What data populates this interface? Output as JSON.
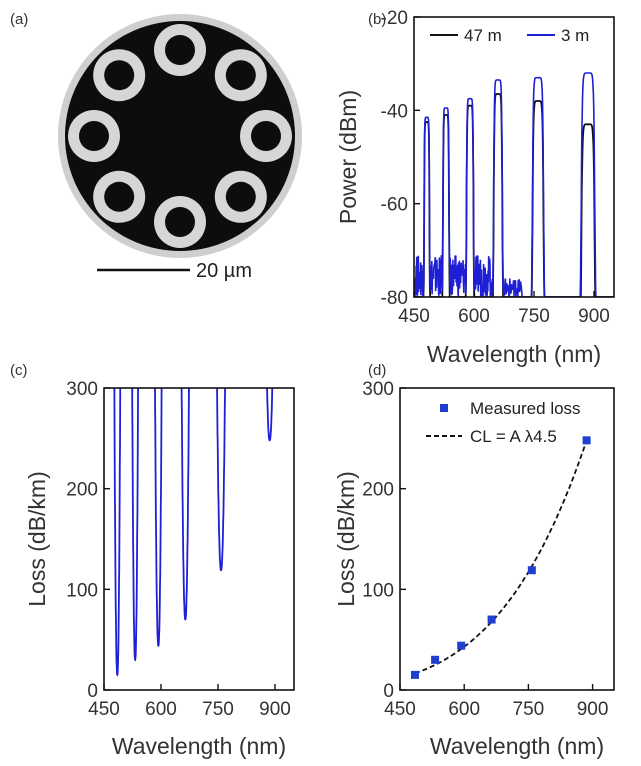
{
  "panel_labels": [
    "(a)",
    "(b)",
    "(c)",
    "(d)"
  ],
  "scalebar_text": "20 µm",
  "colors": {
    "black_series": "#111111",
    "blue_series": "#1f1fd6",
    "marker": "#1f3fcf",
    "fiber_core": "#0d0d0d",
    "fiber_cladding": "#cfcfcf"
  },
  "chart_data": [
    {
      "panel": "(b)",
      "type": "line",
      "xlabel": "Wavelength (nm)",
      "ylabel": "Power (dBm)",
      "xlim": [
        450,
        950
      ],
      "ylim": [
        -80,
        -20
      ],
      "xticks": [
        450,
        600,
        750,
        900
      ],
      "yticks": [
        -80,
        -60,
        -40,
        -20
      ],
      "legend_placement": "top",
      "series": [
        {
          "name": "47 m",
          "color": "#111111",
          "peaks": [
            [
              482,
              -42.5
            ],
            [
              530,
              -41
            ],
            [
              590,
              -39
            ],
            [
              660,
              -36.5
            ],
            [
              760,
              -38
            ],
            [
              885,
              -43
            ]
          ]
        },
        {
          "name": "3 m",
          "color": "#1f1fd6",
          "peaks": [
            [
              482,
              -41.5
            ],
            [
              530,
              -39.5
            ],
            [
              590,
              -37.5
            ],
            [
              660,
              -33.5
            ],
            [
              760,
              -33
            ],
            [
              885,
              -32
            ]
          ]
        }
      ]
    },
    {
      "panel": "(c)",
      "type": "line",
      "xlabel": "Wavelength (nm)",
      "ylabel": "Loss (dB/km)",
      "xlim": [
        450,
        950
      ],
      "ylim": [
        0,
        300
      ],
      "xticks": [
        450,
        600,
        750,
        900
      ],
      "yticks": [
        0,
        100,
        200,
        300
      ],
      "series": [
        {
          "color": "#1f1fd6",
          "dips": [
            [
              485,
              15
            ],
            [
              532,
              30
            ],
            [
              593,
              44
            ],
            [
              664,
              70
            ],
            [
              758,
              119
            ],
            [
              886,
              248
            ]
          ]
        }
      ]
    },
    {
      "panel": "(d)",
      "type": "scatter",
      "xlabel": "Wavelength (nm)",
      "ylabel": "Loss (dB/km)",
      "xlim": [
        450,
        950
      ],
      "ylim": [
        0,
        300
      ],
      "xticks": [
        450,
        600,
        750,
        900
      ],
      "yticks": [
        0,
        100,
        200,
        300
      ],
      "legend_placement": "top-right",
      "series": [
        {
          "name": "Measured loss",
          "color": "#1f3fcf",
          "x": [
            485,
            532,
            593,
            664,
            758,
            886
          ],
          "y": [
            15,
            30,
            44,
            70,
            119,
            248
          ]
        },
        {
          "name": "CL = A λ4.5",
          "color": "#111111",
          "style": "dashed"
        }
      ]
    }
  ]
}
